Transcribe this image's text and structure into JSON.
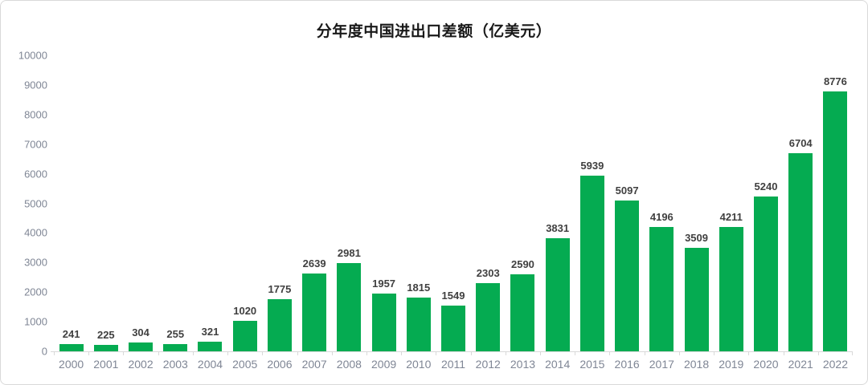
{
  "chart_data": {
    "type": "bar",
    "title": "分年度中国进出口差额（亿美元）",
    "categories": [
      "2000",
      "2001",
      "2002",
      "2003",
      "2004",
      "2005",
      "2006",
      "2007",
      "2008",
      "2009",
      "2010",
      "2011",
      "2012",
      "2013",
      "2014",
      "2015",
      "2016",
      "2017",
      "2018",
      "2019",
      "2020",
      "2021",
      "2022"
    ],
    "values": [
      241,
      225,
      304,
      255,
      321,
      1020,
      1775,
      2639,
      2981,
      1957,
      1815,
      1549,
      2303,
      2590,
      3831,
      5939,
      5097,
      4196,
      3509,
      4211,
      5240,
      6704,
      8776
    ],
    "data_labels": [
      "241",
      "225",
      "304",
      "255",
      "321",
      "1020",
      "1775",
      "2639",
      "2981",
      "1957",
      "1815",
      "1549",
      "2303",
      "2590",
      "3831",
      "5939",
      "5097",
      "4196",
      "3509",
      "4211",
      "5240",
      "6704",
      "8776"
    ],
    "xlabel": "",
    "ylabel": "",
    "ylim": [
      0,
      10000
    ],
    "yticks": [
      0,
      1000,
      2000,
      3000,
      4000,
      5000,
      6000,
      7000,
      8000,
      9000,
      10000
    ],
    "grid": false,
    "legend": "none",
    "colors": {
      "bar": "#05AB51",
      "data_label": "#404040",
      "axis_text": "#7F8695",
      "axis_line": "#D9D9D9",
      "title": "#191919",
      "card_border": "#D9D9D9",
      "background": "#FFFFFF"
    }
  }
}
